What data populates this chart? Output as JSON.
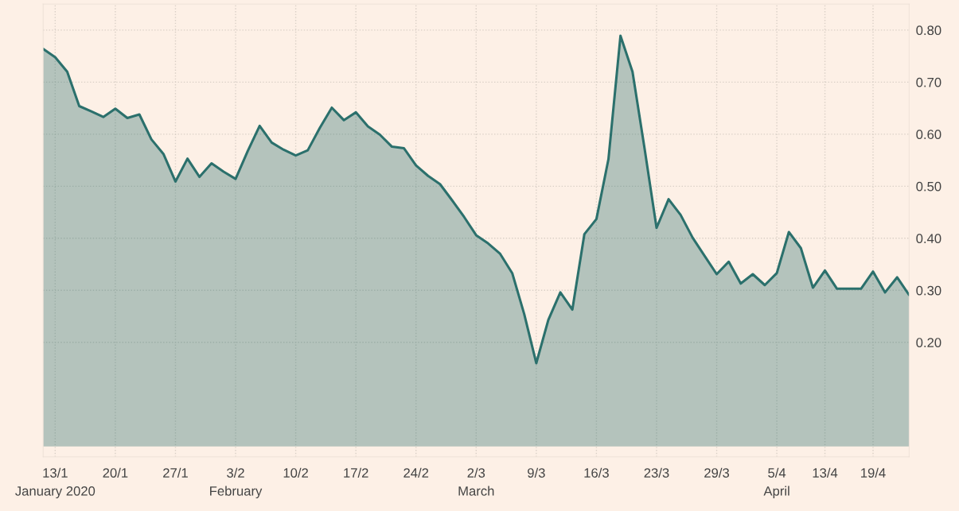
{
  "chart_data": {
    "type": "area",
    "color": "#2b706c",
    "categories": [
      null,
      "13/1\nJanuary 2020",
      null,
      null,
      null,
      null,
      "20/1",
      null,
      null,
      null,
      null,
      "27/1",
      null,
      null,
      null,
      null,
      "3/2\nFebruary",
      null,
      null,
      null,
      null,
      "10/2",
      null,
      null,
      null,
      null,
      "17/2",
      null,
      null,
      null,
      null,
      "24/2",
      null,
      null,
      null,
      null,
      "2/3\nMarch",
      null,
      null,
      null,
      null,
      "9/3",
      null,
      null,
      null,
      null,
      "16/3",
      null,
      null,
      null,
      null,
      "23/3",
      null,
      null,
      null,
      null,
      "29/3",
      null,
      null,
      null,
      null,
      "5/4\nApril",
      null,
      null,
      null,
      "13/4",
      null,
      null,
      null,
      "19/4",
      null,
      null,
      null
    ],
    "values": [
      0.764,
      0.748,
      0.72,
      0.654,
      0.644,
      0.633,
      0.649,
      0.631,
      0.638,
      0.59,
      0.562,
      0.509,
      0.553,
      0.518,
      0.544,
      0.528,
      0.514,
      0.567,
      0.616,
      0.584,
      0.57,
      0.559,
      0.569,
      0.612,
      0.651,
      0.627,
      0.642,
      0.615,
      0.599,
      0.576,
      0.573,
      0.54,
      0.52,
      0.504,
      0.473,
      0.441,
      0.406,
      0.39,
      0.37,
      0.333,
      0.254,
      0.16,
      0.243,
      0.296,
      0.263,
      0.408,
      0.437,
      0.552,
      0.789,
      0.72,
      0.573,
      0.42,
      0.475,
      0.445,
      0.401,
      0.366,
      0.331,
      0.355,
      0.313,
      0.331,
      0.31,
      0.333,
      0.412,
      0.381,
      0.305,
      0.338,
      0.303,
      0.303,
      0.303,
      0.336,
      0.296,
      0.325,
      0.291
    ],
    "ylim": [
      -0.02,
      0.85
    ],
    "yticks": [
      {
        "value": 0.2,
        "label": "0.20"
      },
      {
        "value": 0.3,
        "label": "0.30"
      },
      {
        "value": 0.4,
        "label": "0.40"
      },
      {
        "value": 0.5,
        "label": "0.50"
      },
      {
        "value": 0.6,
        "label": "0.60"
      },
      {
        "value": 0.7,
        "label": "0.70"
      },
      {
        "value": 0.8,
        "label": "0.80"
      }
    ],
    "grid": true,
    "line_style": "solid",
    "marker": "none",
    "legend": false
  }
}
